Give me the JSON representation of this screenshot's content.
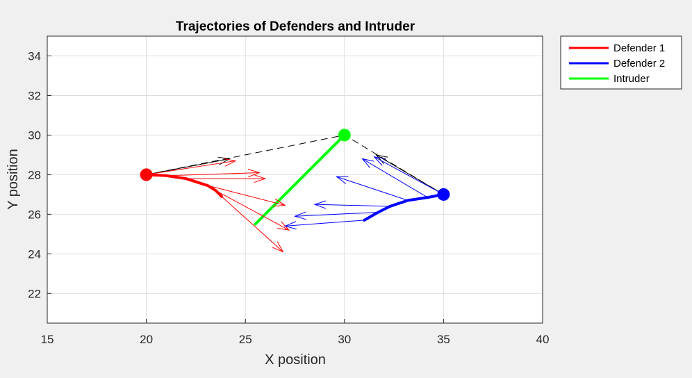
{
  "chart_data": {
    "type": "line",
    "title": "Trajectories of Defenders and Intruder",
    "xlabel": "X position",
    "ylabel": "Y position",
    "xlim": [
      15,
      40
    ],
    "ylim": [
      20.5,
      35
    ],
    "xticks": [
      15,
      20,
      25,
      30,
      35,
      40
    ],
    "yticks": [
      22,
      24,
      26,
      28,
      30,
      32,
      34
    ],
    "grid": true,
    "legend_position": "outside-top-right",
    "series": [
      {
        "name": "Defender 1",
        "color": "#ff0000",
        "x": [
          20.0,
          21.0,
          22.0,
          23.1,
          23.5,
          23.8
        ],
        "y": [
          28.0,
          27.95,
          27.8,
          27.45,
          27.2,
          26.9
        ],
        "start_marker": {
          "x": 20.0,
          "y": 28.0
        }
      },
      {
        "name": "Defender 2",
        "color": "#0000ff",
        "x": [
          35.0,
          34.2,
          33.2,
          32.3,
          31.7,
          31.0
        ],
        "y": [
          27.0,
          26.85,
          26.7,
          26.4,
          26.1,
          25.7
        ],
        "start_marker": {
          "x": 35.0,
          "y": 27.0
        }
      },
      {
        "name": "Intruder",
        "color": "#00ff00",
        "x": [
          30.0,
          25.5
        ],
        "y": [
          30.0,
          25.5
        ],
        "start_marker": {
          "x": 30.0,
          "y": 30.0
        }
      }
    ],
    "dashed_lines": [
      {
        "color": "#000000",
        "x": [
          20.0,
          24.0,
          30.0,
          35.0
        ],
        "y": [
          28.0,
          28.8,
          30.0,
          27.0
        ]
      }
    ],
    "arrows": [
      {
        "color": "#000000",
        "x0": 20.0,
        "y0": 28.0,
        "x1": 24.2,
        "y1": 28.8
      },
      {
        "color": "#ff0000",
        "x0": 20.0,
        "y0": 28.0,
        "x1": 24.5,
        "y1": 28.7
      },
      {
        "color": "#ff0000",
        "x0": 21.0,
        "y0": 27.95,
        "x1": 25.7,
        "y1": 28.1
      },
      {
        "color": "#ff0000",
        "x0": 22.0,
        "y0": 27.8,
        "x1": 26.0,
        "y1": 27.8
      },
      {
        "color": "#ff0000",
        "x0": 23.1,
        "y0": 27.45,
        "x1": 27.0,
        "y1": 26.45
      },
      {
        "color": "#ff0000",
        "x0": 23.5,
        "y0": 27.2,
        "x1": 27.2,
        "y1": 25.2
      },
      {
        "color": "#ff0000",
        "x0": 23.8,
        "y0": 26.9,
        "x1": 26.9,
        "y1": 24.1
      },
      {
        "color": "#000000",
        "x0": 35.0,
        "y0": 27.0,
        "x1": 31.6,
        "y1": 29.0
      },
      {
        "color": "#0000ff",
        "x0": 35.0,
        "y0": 27.0,
        "x1": 31.5,
        "y1": 28.9
      },
      {
        "color": "#0000ff",
        "x0": 34.2,
        "y0": 26.85,
        "x1": 30.9,
        "y1": 28.8
      },
      {
        "color": "#0000ff",
        "x0": 33.2,
        "y0": 26.7,
        "x1": 29.6,
        "y1": 27.9
      },
      {
        "color": "#0000ff",
        "x0": 32.3,
        "y0": 26.4,
        "x1": 28.5,
        "y1": 26.5
      },
      {
        "color": "#0000ff",
        "x0": 31.7,
        "y0": 26.1,
        "x1": 27.5,
        "y1": 25.9
      },
      {
        "color": "#0000ff",
        "x0": 31.0,
        "y0": 25.7,
        "x1": 27.0,
        "y1": 25.4
      }
    ]
  }
}
